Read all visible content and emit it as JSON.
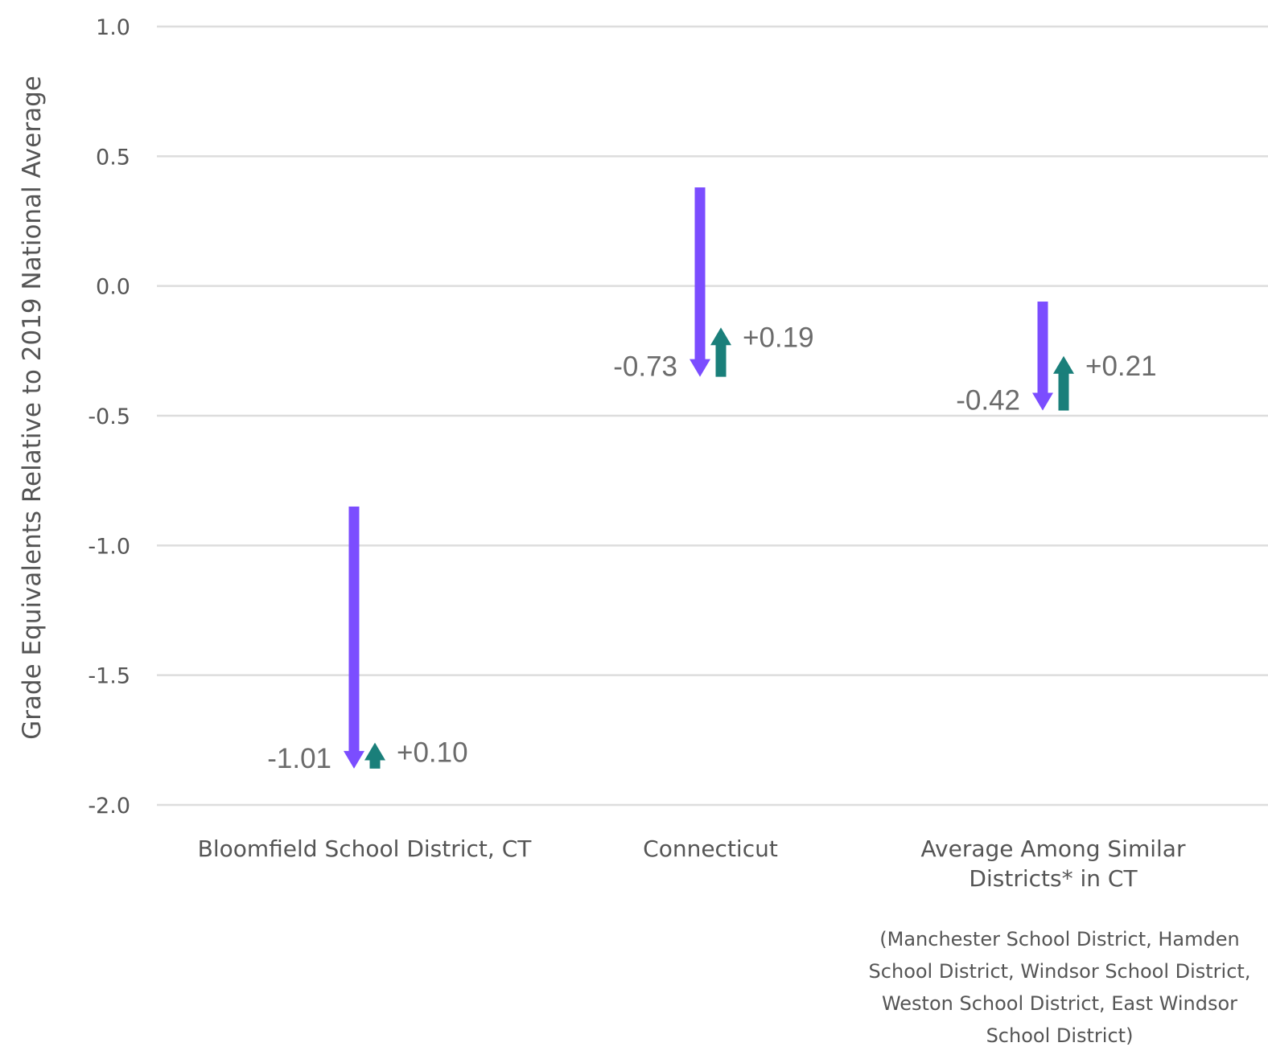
{
  "chart_data": {
    "type": "arrow",
    "ylabel": "Grade Equivalents Relative to 2019 National Average",
    "ylim": [
      -2.0,
      1.0
    ],
    "yticks": [
      "1.0",
      "0.5",
      "0.0",
      "-0.5",
      "-1.0",
      "-1.5",
      "-2.0"
    ],
    "grid": true,
    "colors": {
      "decline": "#7b4dff",
      "recovery": "#1a7f7a"
    },
    "categories": [
      {
        "label_lines": [
          "Bloomfield School District, CT"
        ],
        "start": -0.85,
        "low": -1.86,
        "recovered": -1.76,
        "decline_label": "-1.01",
        "recovery_label": "+0.10"
      },
      {
        "label_lines": [
          "Connecticut"
        ],
        "start": 0.38,
        "low": -0.35,
        "recovered": -0.16,
        "decline_label": "-0.73",
        "recovery_label": "+0.19"
      },
      {
        "label_lines": [
          "Average Among Similar",
          "Districts* in CT"
        ],
        "start": -0.06,
        "low": -0.48,
        "recovered": -0.27,
        "decline_label": "-0.42",
        "recovery_label": "+0.21",
        "note_lines": [
          "(Manchester School District, Hamden",
          "School District, Windsor School District,",
          "Weston School District, East Windsor",
          "School District)"
        ]
      }
    ]
  }
}
